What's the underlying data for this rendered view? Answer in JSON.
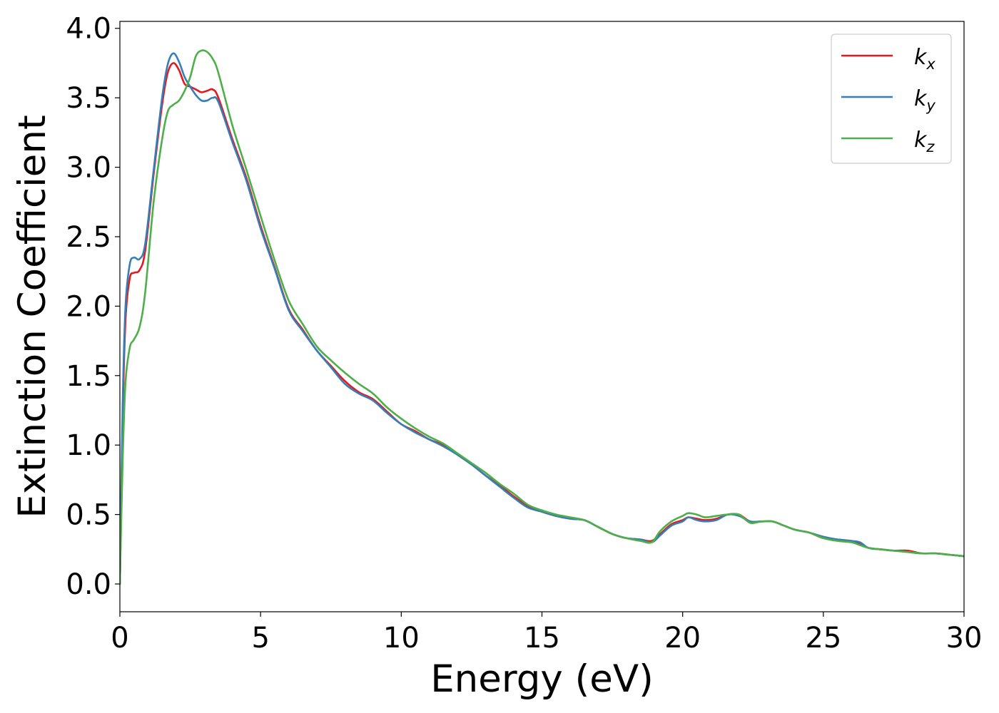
{
  "chart_data": {
    "type": "line",
    "title": "",
    "xlabel": "Energy (eV)",
    "ylabel": "Extinction Coefficient",
    "xlim": [
      0,
      30
    ],
    "ylim": [
      -0.2,
      4.05
    ],
    "xticks": [
      0,
      5,
      10,
      15,
      20,
      25,
      30
    ],
    "xtick_labels": [
      "0",
      "5",
      "10",
      "15",
      "20",
      "25",
      "30"
    ],
    "yticks": [
      0.0,
      0.5,
      1.0,
      1.5,
      2.0,
      2.5,
      3.0,
      3.5,
      4.0
    ],
    "ytick_labels": [
      "0.0",
      "0.5",
      "1.0",
      "1.5",
      "2.0",
      "2.5",
      "3.0",
      "3.5",
      "4.0"
    ],
    "grid": false,
    "legend_position": "top-right",
    "series": [
      {
        "name": "k",
        "subscript": "x",
        "color": "#e41a1c",
        "x": [
          0,
          0.1,
          0.2,
          0.35,
          0.5,
          0.7,
          0.9,
          1.2,
          1.5,
          1.7,
          1.9,
          2.1,
          2.3,
          2.5,
          2.7,
          2.9,
          3.1,
          3.3,
          3.5,
          4.0,
          4.5,
          5.0,
          5.5,
          6.0,
          6.5,
          7.0,
          7.5,
          8.0,
          8.5,
          9.0,
          9.5,
          10.0,
          10.5,
          11.0,
          11.5,
          12.0,
          12.5,
          13.0,
          13.5,
          14.0,
          14.5,
          15.0,
          15.5,
          16.0,
          16.5,
          17.0,
          17.5,
          18.0,
          18.5,
          18.9,
          19.2,
          19.6,
          20.0,
          20.2,
          20.5,
          20.8,
          21.2,
          21.6,
          22.0,
          22.4,
          22.8,
          23.2,
          23.6,
          24.0,
          24.5,
          25.0,
          25.5,
          26.0,
          26.3,
          26.6,
          27.0,
          27.5,
          28.0,
          28.5,
          29.0,
          29.5,
          30.0
        ],
        "y": [
          0.0,
          1.2,
          1.9,
          2.2,
          2.24,
          2.26,
          2.4,
          2.95,
          3.45,
          3.68,
          3.75,
          3.7,
          3.6,
          3.58,
          3.56,
          3.54,
          3.55,
          3.56,
          3.5,
          3.2,
          2.92,
          2.58,
          2.28,
          1.98,
          1.83,
          1.68,
          1.57,
          1.46,
          1.38,
          1.33,
          1.24,
          1.15,
          1.1,
          1.04,
          1.0,
          0.93,
          0.86,
          0.78,
          0.71,
          0.63,
          0.56,
          0.52,
          0.49,
          0.47,
          0.46,
          0.41,
          0.36,
          0.33,
          0.32,
          0.31,
          0.36,
          0.43,
          0.46,
          0.48,
          0.47,
          0.46,
          0.47,
          0.5,
          0.5,
          0.45,
          0.45,
          0.45,
          0.42,
          0.39,
          0.37,
          0.33,
          0.32,
          0.31,
          0.29,
          0.26,
          0.25,
          0.24,
          0.24,
          0.22,
          0.22,
          0.21,
          0.2
        ]
      },
      {
        "name": "k",
        "subscript": "y",
        "color": "#377eb8",
        "x": [
          0,
          0.1,
          0.2,
          0.35,
          0.5,
          0.7,
          0.9,
          1.2,
          1.5,
          1.7,
          1.9,
          2.1,
          2.3,
          2.5,
          2.7,
          2.9,
          3.1,
          3.3,
          3.5,
          4.0,
          4.5,
          5.0,
          5.5,
          6.0,
          6.5,
          7.0,
          7.5,
          8.0,
          8.5,
          9.0,
          9.5,
          10.0,
          10.5,
          11.0,
          11.5,
          12.0,
          12.5,
          13.0,
          13.5,
          14.0,
          14.5,
          15.0,
          15.5,
          16.0,
          16.5,
          17.0,
          17.5,
          18.0,
          18.5,
          18.9,
          19.2,
          19.6,
          20.0,
          20.2,
          20.5,
          20.8,
          21.2,
          21.6,
          22.0,
          22.4,
          22.8,
          23.2,
          23.6,
          24.0,
          24.5,
          25.0,
          25.5,
          26.0,
          26.3,
          26.6,
          27.0,
          27.5,
          28.0,
          28.5,
          29.0,
          29.5,
          30.0
        ],
        "y": [
          0.0,
          1.3,
          2.0,
          2.3,
          2.35,
          2.34,
          2.45,
          2.98,
          3.5,
          3.74,
          3.82,
          3.76,
          3.65,
          3.58,
          3.52,
          3.48,
          3.48,
          3.5,
          3.47,
          3.18,
          2.9,
          2.56,
          2.27,
          1.97,
          1.82,
          1.68,
          1.56,
          1.44,
          1.37,
          1.32,
          1.23,
          1.15,
          1.09,
          1.04,
          0.99,
          0.93,
          0.86,
          0.78,
          0.7,
          0.62,
          0.55,
          0.52,
          0.49,
          0.47,
          0.46,
          0.41,
          0.36,
          0.33,
          0.32,
          0.3,
          0.35,
          0.42,
          0.45,
          0.48,
          0.46,
          0.45,
          0.46,
          0.5,
          0.49,
          0.45,
          0.45,
          0.45,
          0.42,
          0.39,
          0.37,
          0.34,
          0.32,
          0.31,
          0.3,
          0.26,
          0.25,
          0.24,
          0.23,
          0.22,
          0.22,
          0.21,
          0.2
        ]
      },
      {
        "name": "k",
        "subscript": "z",
        "color": "#4daf4a",
        "x": [
          0,
          0.1,
          0.2,
          0.35,
          0.5,
          0.7,
          0.9,
          1.2,
          1.5,
          1.7,
          1.9,
          2.1,
          2.3,
          2.5,
          2.7,
          2.9,
          3.1,
          3.3,
          3.5,
          4.0,
          4.5,
          5.0,
          5.5,
          6.0,
          6.5,
          7.0,
          7.5,
          8.0,
          8.5,
          9.0,
          9.5,
          10.0,
          10.5,
          11.0,
          11.5,
          12.0,
          12.5,
          13.0,
          13.5,
          14.0,
          14.5,
          15.0,
          15.5,
          16.0,
          16.5,
          17.0,
          17.5,
          18.0,
          18.5,
          18.9,
          19.2,
          19.6,
          20.0,
          20.2,
          20.5,
          20.8,
          21.2,
          21.6,
          22.0,
          22.4,
          22.8,
          23.2,
          23.6,
          24.0,
          24.5,
          25.0,
          25.5,
          26.0,
          26.3,
          26.6,
          27.0,
          27.5,
          28.0,
          28.5,
          29.0,
          29.5,
          30.0
        ],
        "y": [
          0.0,
          0.9,
          1.45,
          1.7,
          1.76,
          1.85,
          2.1,
          2.75,
          3.2,
          3.4,
          3.45,
          3.48,
          3.55,
          3.65,
          3.8,
          3.84,
          3.83,
          3.78,
          3.68,
          3.3,
          2.98,
          2.65,
          2.33,
          2.04,
          1.87,
          1.71,
          1.61,
          1.52,
          1.44,
          1.37,
          1.27,
          1.19,
          1.12,
          1.06,
          1.01,
          0.94,
          0.87,
          0.8,
          0.72,
          0.65,
          0.57,
          0.53,
          0.5,
          0.48,
          0.46,
          0.41,
          0.36,
          0.33,
          0.31,
          0.3,
          0.38,
          0.45,
          0.49,
          0.51,
          0.5,
          0.48,
          0.49,
          0.5,
          0.5,
          0.44,
          0.45,
          0.45,
          0.42,
          0.39,
          0.37,
          0.33,
          0.31,
          0.3,
          0.28,
          0.26,
          0.25,
          0.24,
          0.23,
          0.22,
          0.22,
          0.21,
          0.2
        ]
      }
    ]
  }
}
